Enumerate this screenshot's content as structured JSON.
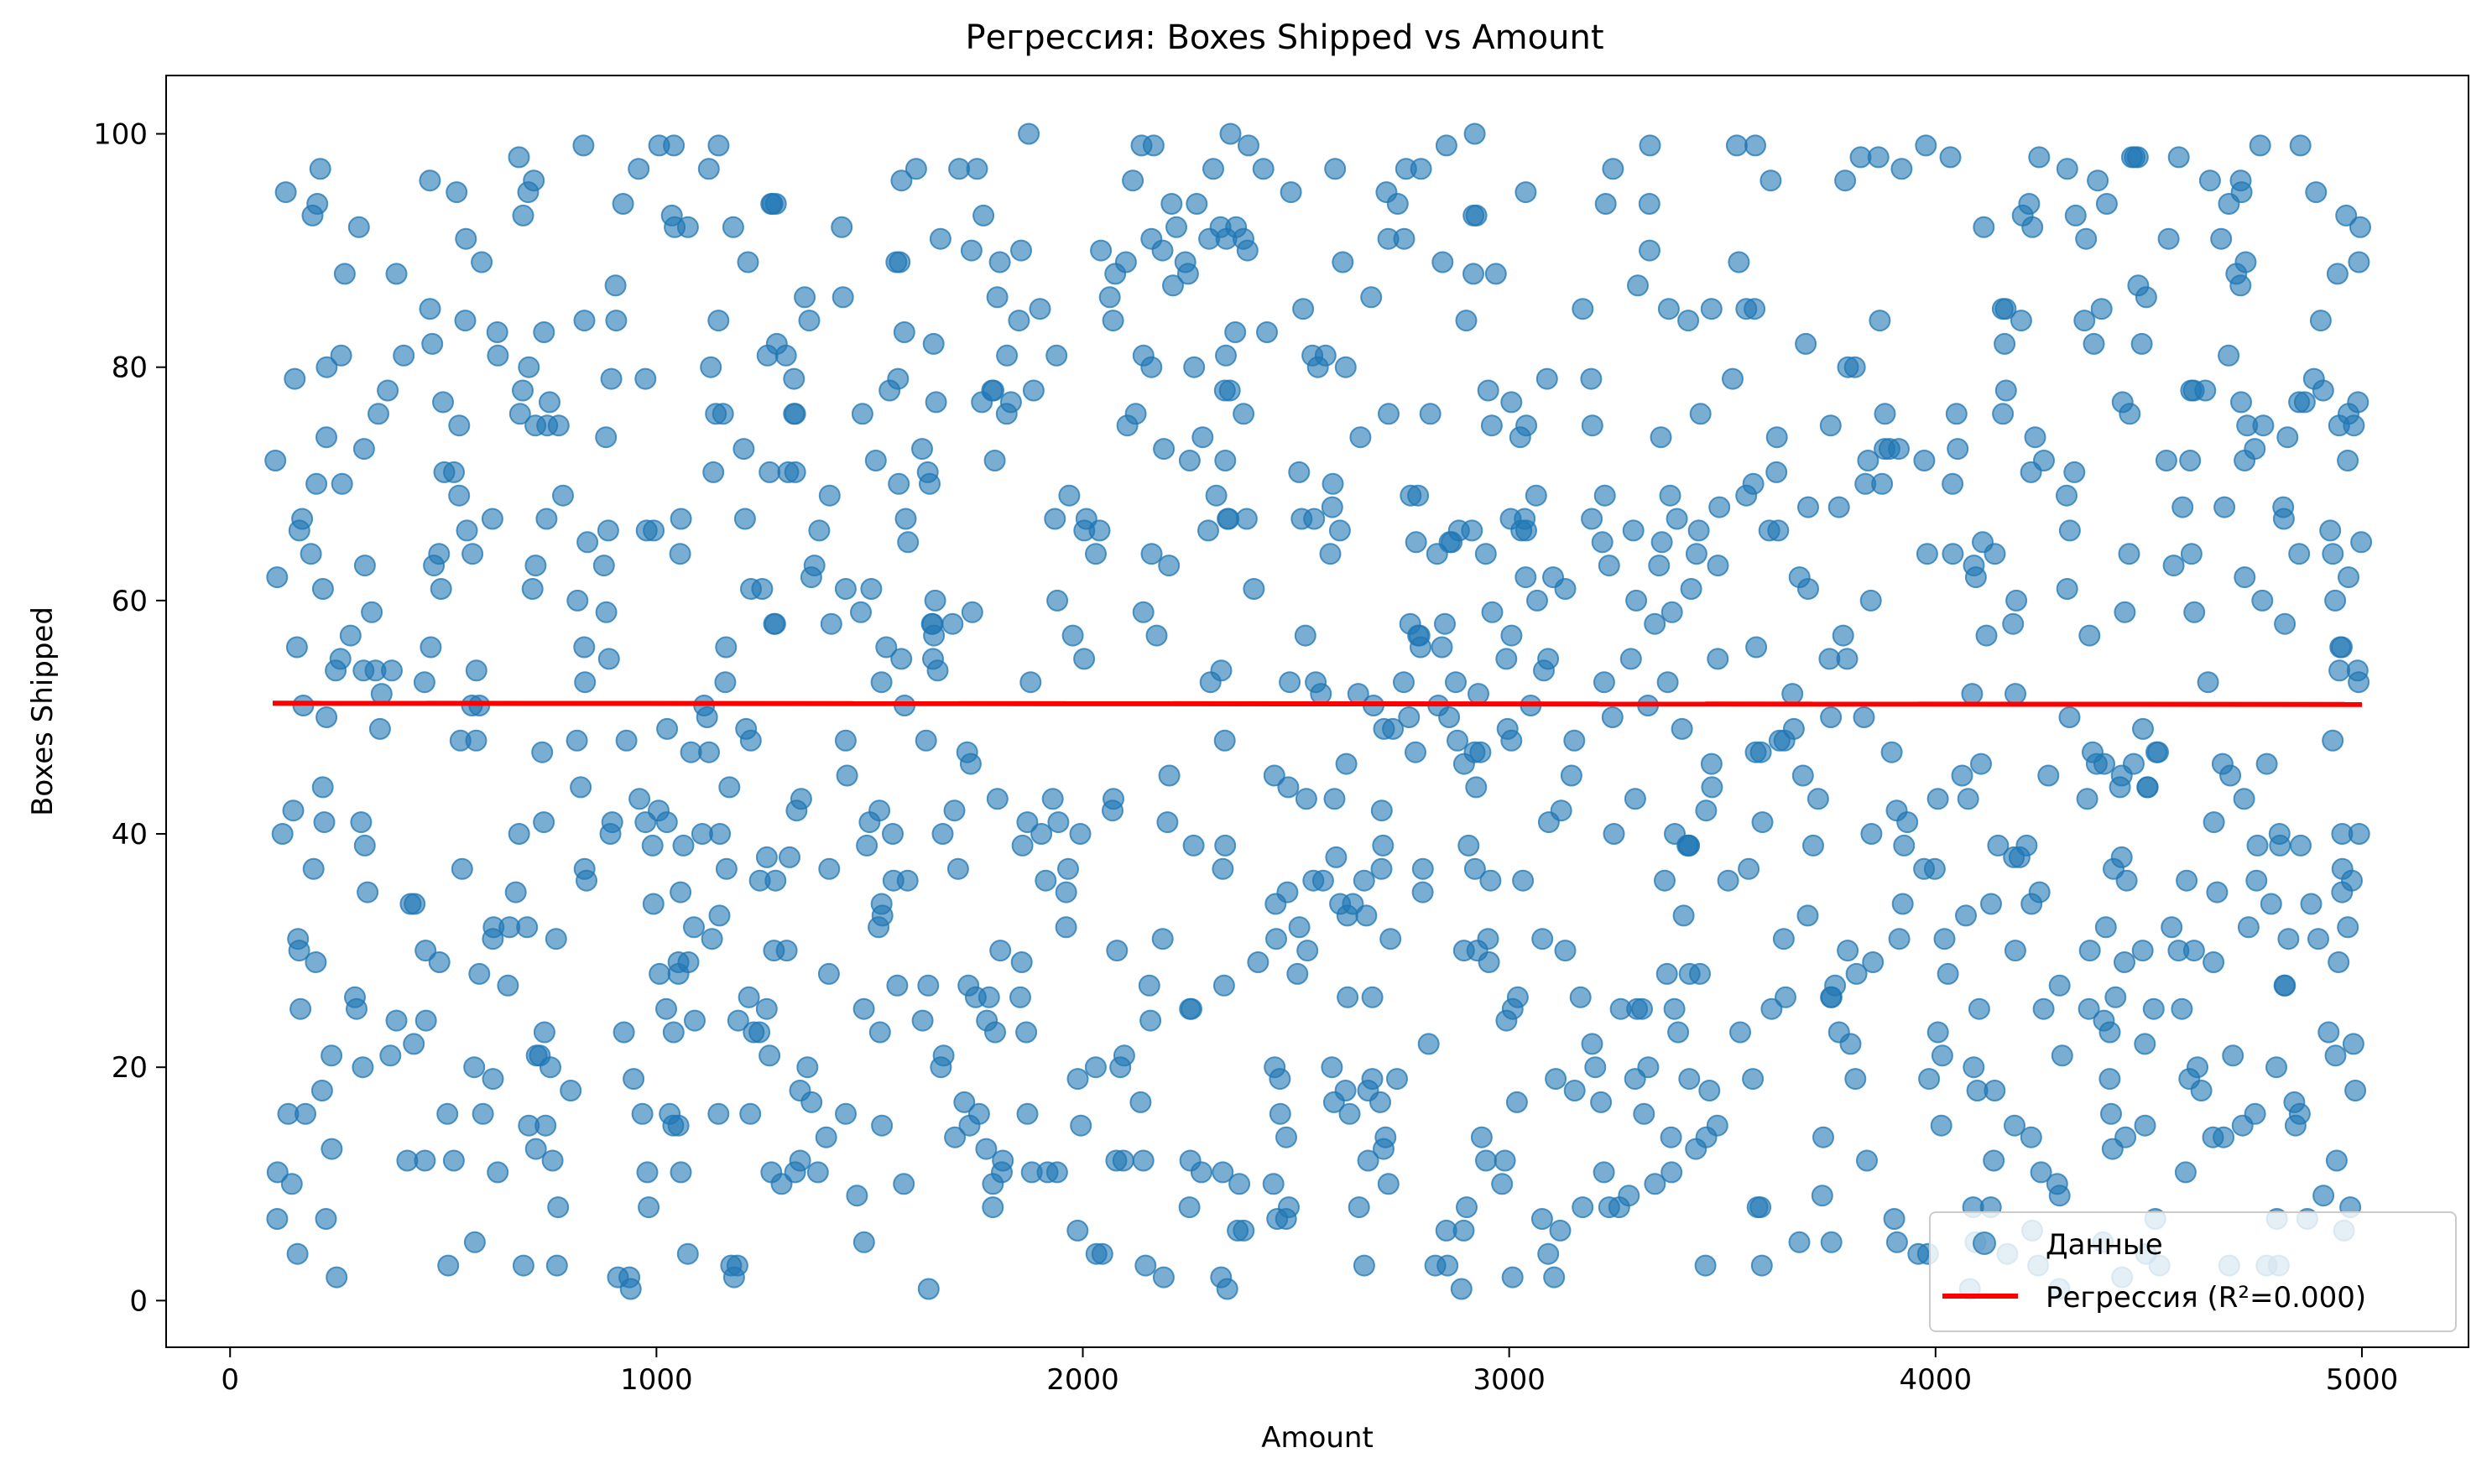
{
  "chart_data": {
    "type": "scatter",
    "title": "Регрессия: Boxes Shipped vs Amount",
    "xlabel": "Amount",
    "ylabel": "Boxes Shipped",
    "xlim": [
      -150,
      5250
    ],
    "ylim": [
      -4,
      105
    ],
    "xticks": [
      0,
      1000,
      2000,
      3000,
      4000,
      5000
    ],
    "yticks": [
      0,
      20,
      40,
      60,
      80,
      100
    ],
    "grid": false,
    "legend_position": "lower right",
    "series": [
      {
        "name": "Данные",
        "kind": "scatter",
        "color": "#1f77b4",
        "opacity": 0.6,
        "generator": {
          "note": "dense uniform cloud of ~1100 points",
          "count": 1100,
          "x_range": [
            100,
            5000
          ],
          "y_range": [
            1,
            100
          ],
          "integer_y": true
        }
      },
      {
        "name": "Регрессия (R²=0.000)",
        "kind": "line",
        "color": "#ff0000",
        "x": [
          100,
          5000
        ],
        "y": [
          51.2,
          51.1
        ]
      }
    ]
  }
}
